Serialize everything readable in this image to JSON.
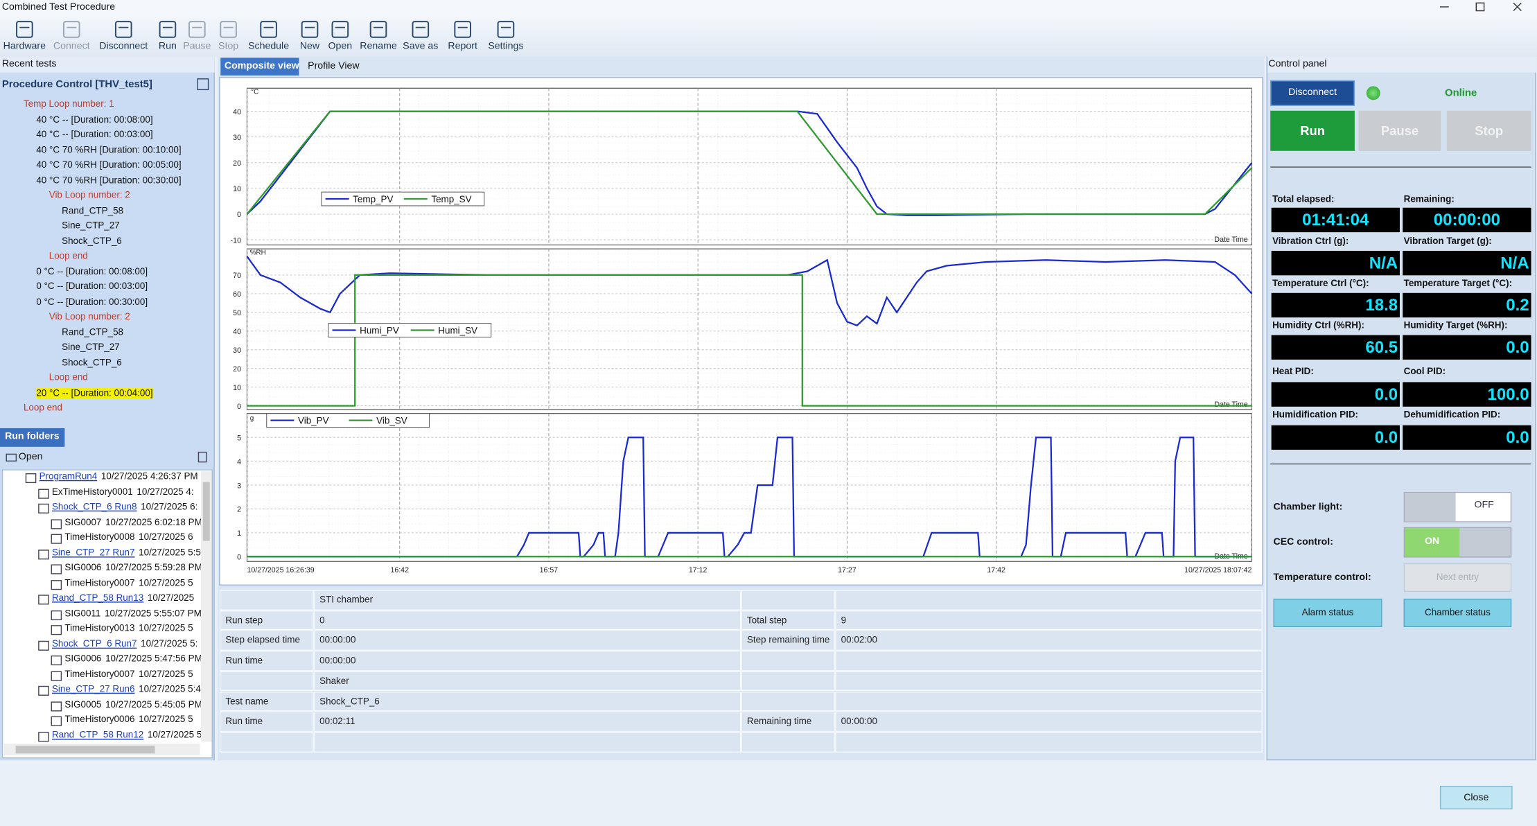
{
  "window": {
    "title": "Combined Test Procedure"
  },
  "toolbar": [
    "Hardware",
    "Connect",
    "Disconnect",
    "Run",
    "Pause",
    "Stop",
    "Schedule",
    "New",
    "Open",
    "Rename",
    "Save as",
    "Report",
    "Settings"
  ],
  "recent_tests": {
    "title": "Recent tests",
    "procedure": "Procedure Control [THV_test5]",
    "items": [
      "Temp Loop number: 1",
      "40 °C -- [Duration: 00:08:00]",
      "40 °C -- [Duration: 00:03:00]",
      "40 °C 70 %RH [Duration: 00:10:00]",
      "40 °C 70 %RH [Duration: 00:05:00]",
      "40 °C 70 %RH [Duration: 00:30:00]",
      "Vib Loop number: 2",
      "Rand_CTP_58",
      "Sine_CTP_27",
      "Shock_CTP_6",
      "Loop end",
      "0 °C -- [Duration: 00:08:00]",
      "0 °C -- [Duration: 00:03:00]",
      "0 °C -- [Duration: 00:30:00]",
      "Vib Loop number: 2",
      "Rand_CTP_58",
      "Sine_CTP_27",
      "Shock_CTP_6",
      "Loop end",
      "20 °C -- [Duration: 00:04:00]",
      "Loop end"
    ]
  },
  "run_folders": {
    "title": "Run folders",
    "open": "Open",
    "rows": [
      {
        "name": "ProgramRun4",
        "date": "10/27/2025 4:26:37 PM"
      },
      {
        "name": "ExTimeHistory0001",
        "date": "10/27/2025 4:"
      },
      {
        "name": "Shock_CTP_6 Run8",
        "date": "10/27/2025 6:"
      },
      {
        "name": "SIG0007",
        "date": "10/27/2025 6:02:18 PM"
      },
      {
        "name": "TimeHistory0008",
        "date": "10/27/2025 6"
      },
      {
        "name": "Sine_CTP_27 Run7",
        "date": "10/27/2025 5:5"
      },
      {
        "name": "SIG0006",
        "date": "10/27/2025 5:59:28 PM"
      },
      {
        "name": "TimeHistory0007",
        "date": "10/27/2025 5"
      },
      {
        "name": "Rand_CTP_58 Run13",
        "date": "10/27/2025"
      },
      {
        "name": "SIG0011",
        "date": "10/27/2025 5:55:07 PM"
      },
      {
        "name": "TimeHistory0013",
        "date": "10/27/2025 5"
      },
      {
        "name": "Shock_CTP_6 Run7",
        "date": "10/27/2025 5:"
      },
      {
        "name": "SIG0006",
        "date": "10/27/2025 5:47:56 PM"
      },
      {
        "name": "TimeHistory0007",
        "date": "10/27/2025 5"
      },
      {
        "name": "Sine_CTP_27 Run6",
        "date": "10/27/2025 5:4"
      },
      {
        "name": "SIG0005",
        "date": "10/27/2025 5:45:05 PM"
      },
      {
        "name": "TimeHistory0006",
        "date": "10/27/2025 5"
      },
      {
        "name": "Rand_CTP_58 Run12",
        "date": "10/27/2025 5"
      }
    ]
  },
  "tabs": [
    "Composite view",
    "Profile View"
  ],
  "chart_data": [
    {
      "type": "line",
      "y_label": "°C",
      "x_label": "Date Time",
      "xlim": [
        "16:26:39",
        "18:07:42"
      ],
      "ylim": [
        -12,
        49
      ],
      "yticks": [
        -10,
        0,
        10,
        20,
        30,
        40
      ],
      "series": [
        {
          "name": "Temp_PV",
          "color": "#1a2ad0",
          "x": [
            "16:26:39",
            "16:28",
            "16:30",
            "16:32",
            "16:34",
            "16:35",
            "16:45",
            "16:55",
            "17:05",
            "17:15",
            "17:22",
            "17:24",
            "17:26",
            "17:28",
            "17:29",
            "17:30",
            "17:31",
            "17:33",
            "17:36",
            "17:45",
            "17:55",
            "18:03",
            "18:04",
            "18:07:42"
          ],
          "values": [
            0,
            5,
            15,
            25,
            35,
            40,
            40,
            40,
            40,
            40,
            40,
            39,
            28,
            18,
            10,
            3,
            0,
            -0.5,
            -0.5,
            0,
            0,
            0,
            2,
            20
          ]
        },
        {
          "name": "Temp_SV",
          "color": "#2f9a2f",
          "x": [
            "16:26:39",
            "16:35",
            "17:22",
            "17:30",
            "18:03",
            "18:07:42"
          ],
          "values": [
            0,
            40,
            40,
            0,
            0,
            18
          ]
        }
      ]
    },
    {
      "type": "line",
      "y_label": "%RH",
      "x_label": "Date Time",
      "xlim": [
        "16:26:39",
        "18:07:42"
      ],
      "ylim": [
        -2,
        84
      ],
      "yticks": [
        0,
        10,
        20,
        30,
        40,
        50,
        60,
        70
      ],
      "series": [
        {
          "name": "Humi_PV",
          "color": "#1a2ad0",
          "x": [
            "16:26:39",
            "16:28",
            "16:30",
            "16:32",
            "16:34",
            "16:35",
            "16:36",
            "16:38",
            "16:41",
            "16:51",
            "17:01",
            "17:11",
            "17:21",
            "17:23",
            "17:25",
            "17:26",
            "17:27",
            "17:28",
            "17:29",
            "17:30",
            "17:31",
            "17:32",
            "17:34",
            "17:35",
            "17:37",
            "17:41",
            "17:47",
            "17:53",
            "17:59",
            "18:04",
            "18:06",
            "18:07:42"
          ],
          "values": [
            80,
            70,
            66,
            58,
            52,
            50,
            60,
            70,
            71,
            70,
            70,
            70,
            70,
            72,
            78,
            55,
            45,
            43,
            48,
            44,
            58,
            50,
            66,
            72,
            75,
            77,
            78,
            77,
            78,
            77,
            70,
            60
          ]
        },
        {
          "name": "Humi_SV",
          "color": "#2f9a2f",
          "x": [
            "16:26:39",
            "16:37:30",
            "16:37:30",
            "17:22:30",
            "17:22:30",
            "18:07:42"
          ],
          "values": [
            0,
            0,
            70,
            70,
            0,
            0
          ]
        }
      ]
    },
    {
      "type": "line",
      "y_label": "g",
      "x_label": "Date Time",
      "xlim": [
        "16:26:39",
        "18:07:42"
      ],
      "ylim": [
        -0.2,
        6
      ],
      "yticks": [
        0,
        1,
        2,
        3,
        4,
        5
      ],
      "xticks": [
        {
          "value": "16:26:39",
          "label": "10/27/2025 16:26:39"
        },
        "16:42",
        "16:57",
        "17:12",
        "17:27",
        "17:42",
        {
          "value": "18:07:42",
          "label": "10/27/2025 18:07:42"
        }
      ],
      "series": [
        {
          "name": "Vib_PV",
          "color": "#1a2ad0",
          "x": [
            "16:26:39",
            "16:53:48",
            "16:54:30",
            "16:55",
            "17:00",
            "17:00:10",
            "17:00:30",
            "17:01:30",
            "17:02",
            "17:02:30",
            "17:02:40",
            "17:03:40",
            "17:04",
            "17:04:30",
            "17:05",
            "17:06:30",
            "17:06:40",
            "17:08",
            "17:09",
            "17:14:30",
            "17:14:40",
            "17:15",
            "17:16",
            "17:16:40",
            "17:17:20",
            "17:18",
            "17:19:30",
            "17:20",
            "17:21:30",
            "17:21:40",
            "17:34:40",
            "17:35:30",
            "17:40:10",
            "17:40:20",
            "17:44:30",
            "17:45",
            "17:45:30",
            "17:46",
            "17:47:30",
            "17:47:40",
            "17:48:30",
            "17:49",
            "17:55",
            "17:55:10",
            "17:56",
            "17:56:30",
            "17:57",
            "17:58:40",
            "17:58:50",
            "17:59:50",
            "18:00",
            "18:00:30",
            "18:01:50",
            "18:02",
            "18:07:42"
          ],
          "values": [
            0,
            0,
            0.5,
            1,
            1,
            0,
            0,
            0.5,
            1,
            1,
            0,
            0,
            1,
            4,
            5,
            5,
            0,
            0,
            1,
            1,
            0,
            0,
            0.5,
            1,
            1,
            3,
            3,
            5,
            5,
            0,
            0,
            1,
            1,
            0,
            0,
            0.5,
            3,
            5,
            5,
            0,
            0,
            1,
            1,
            0,
            0,
            0.5,
            1,
            1,
            0,
            0,
            4,
            5,
            5,
            0,
            0
          ]
        },
        {
          "name": "Vib_SV",
          "color": "#2f9a2f",
          "x": [
            "16:26:39",
            "18:07:42"
          ],
          "values": [
            0,
            0
          ]
        }
      ]
    }
  ],
  "info_table": {
    "rows": [
      [
        null,
        "STI chamber",
        null,
        null
      ],
      [
        "Run step",
        "0",
        "Total step",
        "9"
      ],
      [
        "Step elapsed time",
        "00:00:00",
        "Step remaining time",
        "00:02:00"
      ],
      [
        "Run time",
        "00:00:00",
        null,
        null
      ],
      [
        null,
        "Shaker",
        null,
        null
      ],
      [
        "Test name",
        "Shock_CTP_6",
        null,
        null
      ],
      [
        "Run time",
        "00:02:11",
        "Remaining time",
        "00:00:00"
      ],
      [
        null,
        null,
        null,
        null
      ]
    ]
  },
  "control_panel": {
    "title": "Control panel",
    "disconnect": "Disconnect",
    "status": "Online",
    "run": "Run",
    "pause": "Pause",
    "stop": "Stop",
    "readouts": [
      {
        "label": "Total elapsed:",
        "value": "01:41:04"
      },
      {
        "label": "Remaining:",
        "value": "00:00:00"
      },
      {
        "label": "Vibration Ctrl (g):",
        "value": "N/A"
      },
      {
        "label": "Vibration Target (g):",
        "value": "N/A"
      },
      {
        "label": "Temperature Ctrl (°C):",
        "value": "18.8"
      },
      {
        "label": "Temperature Target (°C):",
        "value": "0.2"
      },
      {
        "label": "Humidity Ctrl (%RH):",
        "value": "60.5"
      },
      {
        "label": "Humidity Target (%RH):",
        "value": "0.0"
      },
      {
        "label": "Heat PID:",
        "value": "0.0"
      },
      {
        "label": "Cool PID:",
        "value": "100.0"
      },
      {
        "label": "Humidification PID:",
        "value": "0.0"
      },
      {
        "label": "Dehumidification PID:",
        "value": "0.0"
      }
    ],
    "chamber_light": {
      "label": "Chamber light:",
      "state": "OFF"
    },
    "cec_control": {
      "label": "CEC control:",
      "state": "ON"
    },
    "temperature_control": {
      "label": "Temperature control:",
      "button": "Next entry"
    },
    "alarm_status": "Alarm status",
    "chamber_status": "Chamber status"
  },
  "close": "Close"
}
